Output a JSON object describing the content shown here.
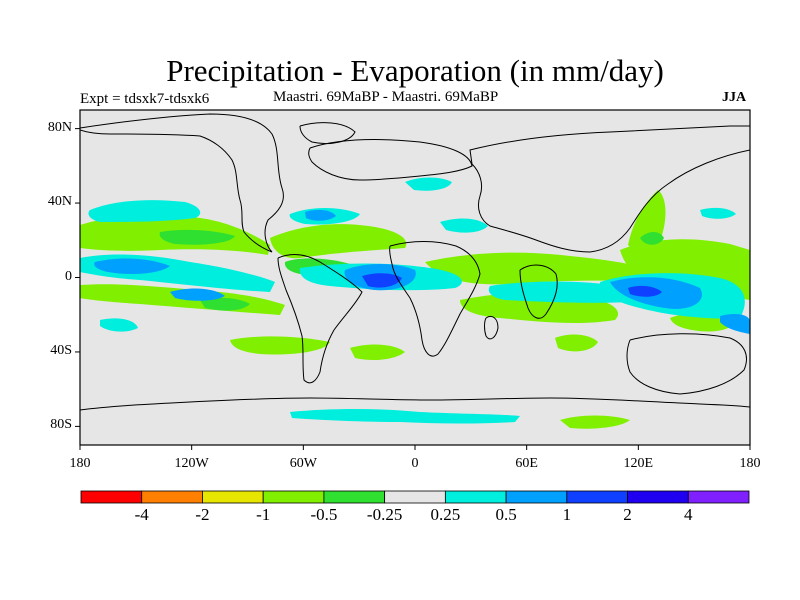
{
  "title": "Precipitation - Evaporation (in mm/day)",
  "left_label": "Expt = tdsxk7-tdsxk6",
  "center_label": "Maastri.  69MaBP - Maastri.  69MaBP",
  "season": "JJA",
  "colors": {
    "land_background": "#e6e6e6",
    "coastline": "#000000",
    "anomaly_light_green": "#80f000",
    "anomaly_green": "#30e030",
    "anomaly_cyan": "#00eedd",
    "anomaly_sky": "#00a0ff",
    "anomaly_blue": "#1040ff"
  },
  "map": {
    "projection": "cylindrical equidistant",
    "lon_range": [
      -180,
      180
    ],
    "lat_range": [
      -90,
      90
    ],
    "y_ticks": [
      {
        "label": "80N",
        "lat": 80
      },
      {
        "label": "40N",
        "lat": 40
      },
      {
        "label": "0",
        "lat": 0
      },
      {
        "label": "40S",
        "lat": -40
      },
      {
        "label": "80S",
        "lat": -80
      }
    ],
    "x_ticks": [
      {
        "label": "180",
        "lon": -180
      },
      {
        "label": "120W",
        "lon": -120
      },
      {
        "label": "60W",
        "lon": -60
      },
      {
        "label": "0",
        "lon": 0
      },
      {
        "label": "60E",
        "lon": 60
      },
      {
        "label": "120E",
        "lon": 120
      },
      {
        "label": "180",
        "lon": 180
      }
    ]
  },
  "colorbar": {
    "colors": [
      "#ff0000",
      "#ff8000",
      "#e6e600",
      "#80f000",
      "#30e030",
      "#e6e6e6",
      "#00eedd",
      "#00a0ff",
      "#1040ff",
      "#2000f0",
      "#8020ff"
    ],
    "labels": [
      "-4",
      "-2",
      "-1",
      "-0.5",
      "-0.25",
      "0.25",
      "0.5",
      "1",
      "2",
      "4"
    ]
  }
}
